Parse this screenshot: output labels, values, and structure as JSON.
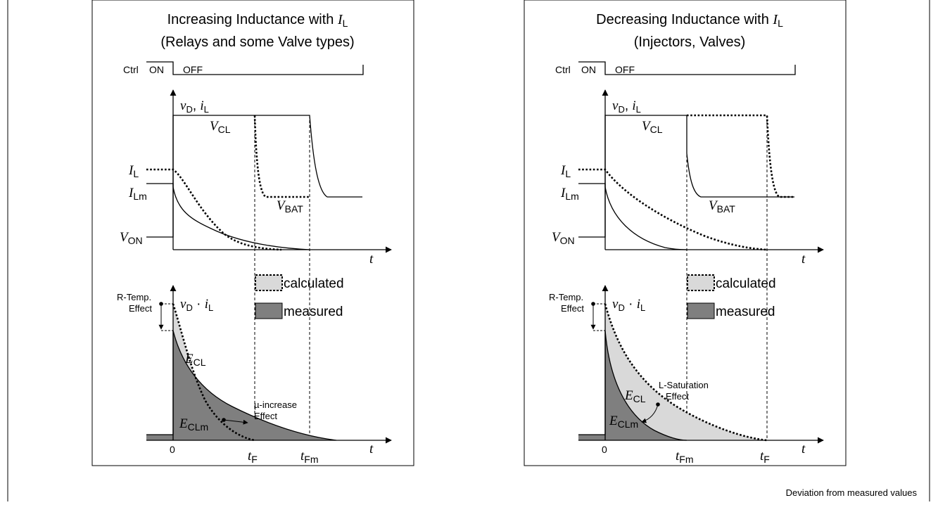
{
  "caption": "Deviation from measured values",
  "legend": {
    "calculated": "calculated",
    "measured": "measured"
  },
  "panels": [
    {
      "title_text": "Increasing Inductance with ",
      "title_var": "I",
      "title_sub": "L",
      "subtitle": "(Relays and some Valve types)",
      "ctrl": {
        "label": "Ctrl",
        "on": "ON",
        "off": "OFF"
      },
      "top": {
        "axis_y_var1": "v",
        "axis_y_sub1": "D",
        "axis_y_sep": ", ",
        "axis_y_var2": "i",
        "axis_y_sub2": "L",
        "axis_x": "t",
        "vcl_var": "V",
        "vcl_sub": "CL",
        "vbat_var": "V",
        "vbat_sub": "BAT",
        "il_var": "I",
        "il_sub": "L",
        "ilm_var": "I",
        "ilm_sub": "Lm",
        "von_var": "V",
        "von_sub": "ON"
      },
      "bottom": {
        "axis_y_var1": "v",
        "axis_y_sub1": "D",
        "axis_y_dot": " · ",
        "axis_y_var2": "i",
        "axis_y_sub2": "L",
        "axis_x": "t",
        "origin": "0",
        "rtemp_line1": "R-Temp.",
        "rtemp_line2": "Effect",
        "ecl_var": "E",
        "ecl_sub": "CL",
        "eclm_var": "E",
        "eclm_sub": "CLm",
        "effect_line1": "µ-increase",
        "effect_line2": "Effect",
        "t1_var": "t",
        "t1_sub": "F",
        "t2_var": "t",
        "t2_sub": "Fm"
      }
    },
    {
      "title_text": "Decreasing Inductance with ",
      "title_var": "I",
      "title_sub": "L",
      "subtitle": "(Injectors, Valves)",
      "ctrl": {
        "label": "Ctrl",
        "on": "ON",
        "off": "OFF"
      },
      "top": {
        "axis_y_var1": "v",
        "axis_y_sub1": "D",
        "axis_y_sep": ", ",
        "axis_y_var2": "i",
        "axis_y_sub2": "L",
        "axis_x": "t",
        "vcl_var": "V",
        "vcl_sub": "CL",
        "vbat_var": "V",
        "vbat_sub": "BAT",
        "il_var": "I",
        "il_sub": "L",
        "ilm_var": "I",
        "ilm_sub": "Lm",
        "von_var": "V",
        "von_sub": "ON"
      },
      "bottom": {
        "axis_y_var1": "v",
        "axis_y_sub1": "D",
        "axis_y_dot": " · ",
        "axis_y_var2": "i",
        "axis_y_sub2": "L",
        "axis_x": "t",
        "origin": "0",
        "rtemp_line1": "R-Temp.",
        "rtemp_line2": "Effect",
        "ecl_var": "E",
        "ecl_sub": "CL",
        "eclm_var": "E",
        "eclm_sub": "CLm",
        "effect_line1": "L-Saturation",
        "effect_line2": "Effect",
        "t1_var": "t",
        "t1_sub": "Fm",
        "t2_var": "t",
        "t2_sub": "F"
      }
    }
  ]
}
